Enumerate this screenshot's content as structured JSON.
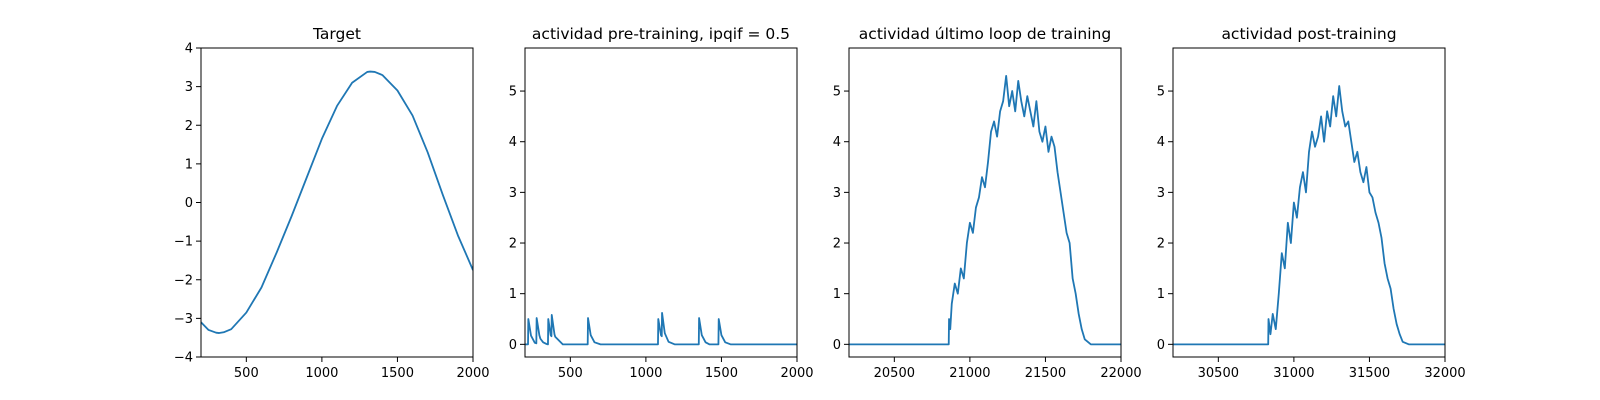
{
  "figure": {
    "background": "#ffffff",
    "line_color": "#1f77b4"
  },
  "chart_data": [
    {
      "type": "line",
      "title": "Target",
      "xlabel": "",
      "ylabel": "",
      "xlim": [
        200,
        2000
      ],
      "ylim": [
        -4,
        4
      ],
      "xticks": [
        500,
        1000,
        1500,
        2000
      ],
      "yticks": [
        -4,
        -3,
        -2,
        -1,
        0,
        1,
        2,
        3,
        4
      ],
      "series": [
        {
          "x": [
            200,
            250,
            300,
            320,
            350,
            400,
            500,
            600,
            700,
            800,
            900,
            1000,
            1100,
            1200,
            1300,
            1320,
            1350,
            1400,
            1500,
            1600,
            1700,
            1800,
            1900,
            2000
          ],
          "y": [
            -3.1,
            -3.3,
            -3.37,
            -3.38,
            -3.36,
            -3.28,
            -2.85,
            -2.2,
            -1.3,
            -0.35,
            0.65,
            1.65,
            2.5,
            3.1,
            3.38,
            3.39,
            3.38,
            3.3,
            2.9,
            2.25,
            1.3,
            0.2,
            -0.85,
            -1.75
          ]
        }
      ]
    },
    {
      "type": "line",
      "title": "actividad pre-training, ipqif = 0.5",
      "xlabel": "",
      "ylabel": "",
      "xlim": [
        200,
        2000
      ],
      "ylim": [
        -0.25,
        5.85
      ],
      "xticks": [
        500,
        1000,
        1500,
        2000
      ],
      "yticks": [
        0,
        1,
        2,
        3,
        4,
        5
      ],
      "series": [
        {
          "x": [
            200,
            220,
            222,
            240,
            265,
            275,
            277,
            295,
            300,
            302,
            320,
            340,
            352,
            354,
            370,
            375,
            377,
            395,
            400,
            450,
            615,
            617,
            635,
            660,
            700,
            1080,
            1082,
            1100,
            1105,
            1107,
            1125,
            1150,
            1190,
            1350,
            1352,
            1370,
            1395,
            1420,
            1480,
            1482,
            1500,
            1525,
            1560,
            2000
          ],
          "y": [
            0,
            0,
            0.5,
            0.17,
            0.03,
            0.02,
            0.52,
            0.18,
            0.13,
            0.11,
            0.04,
            0.01,
            0.0,
            0.5,
            0.18,
            0.16,
            0.58,
            0.2,
            0.15,
            0.0,
            0.0,
            0.52,
            0.18,
            0.04,
            0.0,
            0.0,
            0.5,
            0.18,
            0.16,
            0.62,
            0.22,
            0.05,
            0.0,
            0.0,
            0.52,
            0.18,
            0.04,
            0.0,
            0.0,
            0.5,
            0.18,
            0.04,
            0.0,
            0.0
          ]
        }
      ]
    },
    {
      "type": "line",
      "title": "actividad último loop de training",
      "xlabel": "",
      "ylabel": "",
      "xlim": [
        20200,
        22000
      ],
      "ylim": [
        -0.25,
        5.85
      ],
      "xticks": [
        20500,
        21000,
        21500,
        22000
      ],
      "yticks": [
        0,
        1,
        2,
        3,
        4,
        5
      ],
      "series": [
        {
          "x": [
            20200,
            20860,
            20862,
            20870,
            20880,
            20900,
            20920,
            20940,
            20960,
            20980,
            21000,
            21020,
            21040,
            21060,
            21080,
            21100,
            21120,
            21140,
            21160,
            21180,
            21200,
            21220,
            21240,
            21260,
            21280,
            21300,
            21320,
            21340,
            21360,
            21380,
            21400,
            21420,
            21440,
            21460,
            21480,
            21500,
            21520,
            21540,
            21560,
            21580,
            21600,
            21620,
            21640,
            21660,
            21680,
            21700,
            21720,
            21740,
            21760,
            21800,
            22000
          ],
          "y": [
            0,
            0,
            0.5,
            0.3,
            0.8,
            1.2,
            1.0,
            1.5,
            1.3,
            2.0,
            2.4,
            2.2,
            2.7,
            2.9,
            3.3,
            3.1,
            3.6,
            4.2,
            4.4,
            4.1,
            4.6,
            4.8,
            5.3,
            4.7,
            5.0,
            4.6,
            5.2,
            4.8,
            4.5,
            4.9,
            4.6,
            4.3,
            4.8,
            4.2,
            4.0,
            4.3,
            3.8,
            4.1,
            3.9,
            3.4,
            3.0,
            2.6,
            2.2,
            2.0,
            1.3,
            1.0,
            0.6,
            0.3,
            0.1,
            0.0,
            0.0
          ]
        }
      ]
    },
    {
      "type": "line",
      "title": "actividad post-training",
      "xlabel": "",
      "ylabel": "",
      "xlim": [
        30200,
        32000
      ],
      "ylim": [
        -0.25,
        5.85
      ],
      "xticks": [
        30500,
        31000,
        31500,
        32000
      ],
      "yticks": [
        0,
        1,
        2,
        3,
        4,
        5
      ],
      "series": [
        {
          "x": [
            30200,
            30830,
            30832,
            30845,
            30860,
            30880,
            30900,
            30920,
            30940,
            30960,
            30980,
            31000,
            31020,
            31040,
            31060,
            31080,
            31100,
            31120,
            31140,
            31160,
            31180,
            31200,
            31220,
            31240,
            31260,
            31280,
            31300,
            31320,
            31340,
            31360,
            31380,
            31400,
            31420,
            31440,
            31460,
            31480,
            31500,
            31520,
            31540,
            31560,
            31580,
            31600,
            31620,
            31640,
            31660,
            31680,
            31700,
            31720,
            31760,
            32000
          ],
          "y": [
            0,
            0,
            0.5,
            0.2,
            0.6,
            0.3,
            1.0,
            1.8,
            1.5,
            2.4,
            2.0,
            2.8,
            2.5,
            3.1,
            3.4,
            3.0,
            3.8,
            4.2,
            3.9,
            4.1,
            4.5,
            4.0,
            4.6,
            4.3,
            4.9,
            4.5,
            5.1,
            4.6,
            4.3,
            4.4,
            4.0,
            3.6,
            3.8,
            3.4,
            3.2,
            3.5,
            3.0,
            2.9,
            2.6,
            2.4,
            2.1,
            1.6,
            1.3,
            1.1,
            0.7,
            0.4,
            0.2,
            0.05,
            0.0,
            0.0
          ]
        }
      ]
    }
  ]
}
